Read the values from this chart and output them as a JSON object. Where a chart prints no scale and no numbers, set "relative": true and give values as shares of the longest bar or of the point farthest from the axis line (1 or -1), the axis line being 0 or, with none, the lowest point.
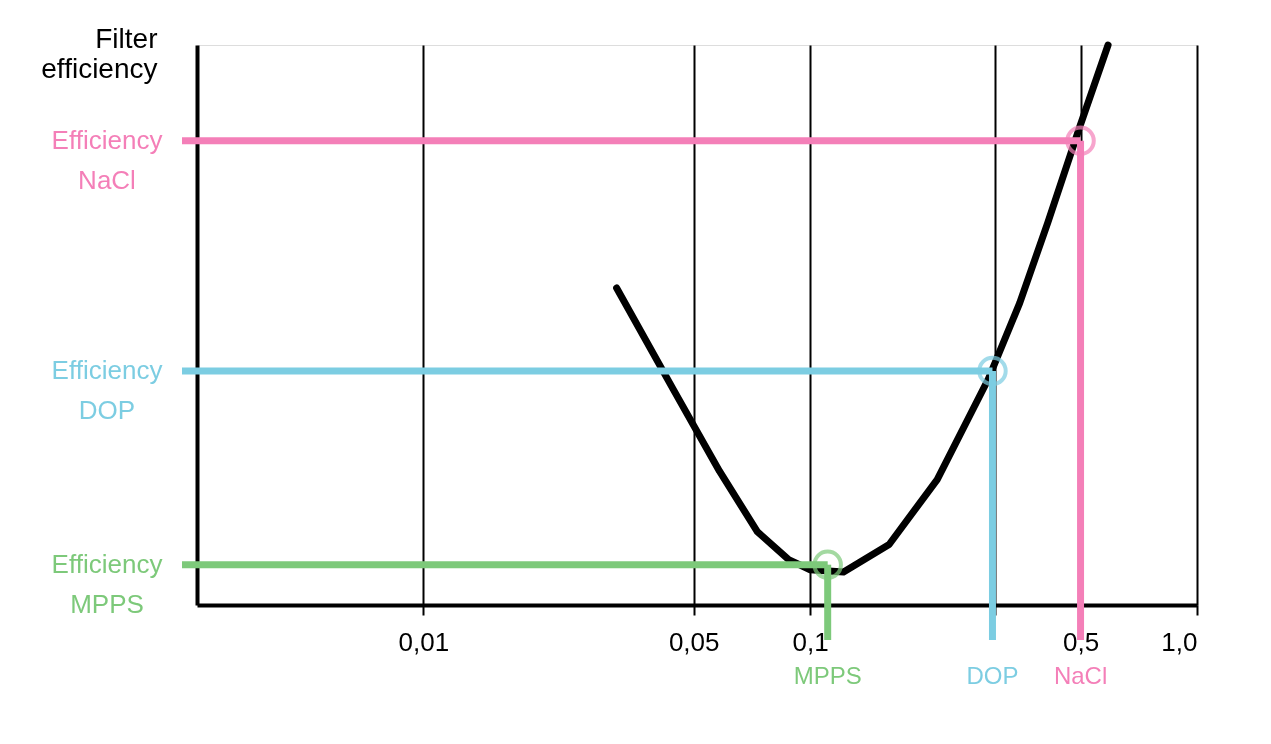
{
  "chart_data": {
    "type": "line",
    "relative": true,
    "ylabel": "Filter efficiency",
    "x": [
      0.0316,
      0.0442,
      0.0583,
      0.073,
      0.088,
      0.1,
      0.122,
      0.16,
      0.213,
      0.289,
      0.348,
      0.411,
      0.497,
      0.589
    ],
    "series": [
      {
        "color": "#000000",
        "values": [
          0.566,
          0.386,
          0.239,
          0.131,
          0.081,
          0.063,
          0.059,
          0.108,
          0.224,
          0.404,
          0.539,
          0.682,
          0.853,
          1
        ]
      },
      {
        "type": "scatter",
        "marker": "circle",
        "x": [
          0.5,
          0.296,
          0.111
        ],
        "values": [
          0.829,
          0.418,
          0.072
        ],
        "colors": [
          "#f47fb8",
          "#7ccde2",
          "#7dc97a"
        ]
      }
    ],
    "log": "x",
    "xlim": [
      0.0026,
      1.0
    ],
    "xticks": [
      {
        "value": 0.01,
        "label": "0,01"
      },
      {
        "value": 0.05,
        "label": "0,05"
      },
      {
        "value": 0.1,
        "label": "0,1"
      },
      {
        "value": 0.3,
        "label": null
      },
      {
        "value": 0.5,
        "label": "0,5"
      },
      {
        "value": 1.0,
        "label": "1,0"
      }
    ],
    "grid": "x",
    "marker": "none",
    "line_style": "solid",
    "ref_lines": [
      {
        "axis": "y",
        "value": 0.829,
        "label": "Efficiency NaCl",
        "color": "#f47fb8"
      },
      {
        "axis": "x",
        "value": 0.5,
        "label": "NaCl",
        "color": "#f47fb8"
      },
      {
        "axis": "y",
        "value": 0.418,
        "label": "Efficiency DOP",
        "color": "#7ccde2"
      },
      {
        "axis": "x",
        "value": 0.296,
        "label": "DOP",
        "color": "#7ccde2"
      },
      {
        "axis": "y",
        "value": 0.072,
        "label": "Efficiency MPPS",
        "color": "#7dc97a"
      },
      {
        "axis": "x",
        "value": 0.111,
        "label": "MPPS",
        "color": "#7dc97a"
      }
    ]
  }
}
